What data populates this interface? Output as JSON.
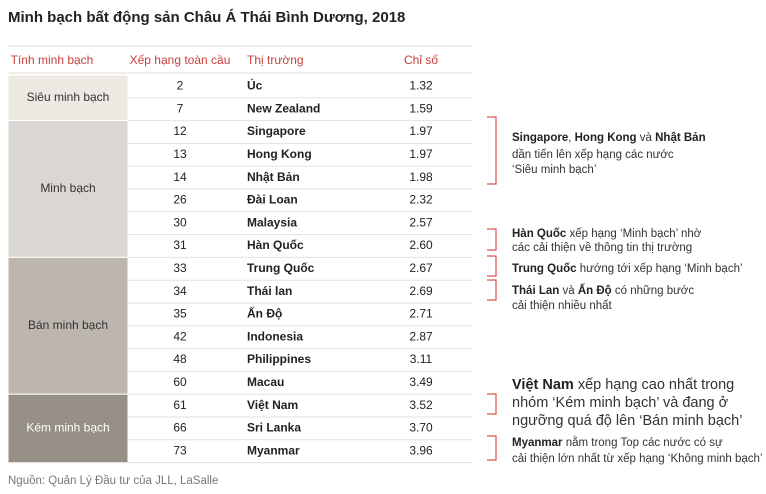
{
  "title": "Minh bạch bất động sản Châu Á Thái Bình Dương, 2018",
  "table": {
    "headers": [
      "Tính minh bạch",
      "Xếp hạng toàn cầu",
      "Thị trường",
      "Chỉ số"
    ],
    "groups": [
      {
        "label": "Siêu minh bạch",
        "rows": [
          [
            2,
            "Úc",
            "1.32"
          ],
          [
            7,
            "New Zealand",
            "1.59"
          ]
        ]
      },
      {
        "label": "Minh bạch",
        "rows": [
          [
            12,
            "Singapore",
            "1.97"
          ],
          [
            13,
            "Hong Kong",
            "1.97"
          ],
          [
            14,
            "Nhật Bản",
            "1.98"
          ],
          [
            26,
            "Đài Loan",
            "2.32"
          ],
          [
            30,
            "Malaysia",
            "2.57"
          ],
          [
            31,
            "Hàn Quốc",
            "2.60"
          ]
        ]
      },
      {
        "label": "Bán minh bạch",
        "rows": [
          [
            33,
            "Trung Quốc",
            "2.67"
          ],
          [
            34,
            "Thái lan",
            "2.69"
          ],
          [
            35,
            "Ấn Độ",
            "2.71"
          ],
          [
            42,
            "Indonesia",
            "2.87"
          ],
          [
            48,
            "Philippines",
            "3.11"
          ],
          [
            60,
            "Macau",
            "3.49"
          ]
        ]
      },
      {
        "label": "Kém minh bạch",
        "rows": [
          [
            61,
            "Việt Nam",
            "3.52"
          ],
          [
            66,
            "Sri Lanka",
            "3.70"
          ],
          [
            73,
            "Myanmar",
            "3.96"
          ]
        ]
      }
    ]
  },
  "annotations": [
    {
      "lines": [
        [
          {
            "text": "Singapore",
            "bold": true
          },
          {
            "text": ", "
          },
          {
            "text": "Hong Kong",
            "bold": true
          },
          {
            "text": " và "
          },
          {
            "text": "Nhật Bản",
            "bold": true
          }
        ],
        [
          {
            "text": "dần tiến lên xếp hạng các nước"
          }
        ],
        [
          {
            "text": "‘Siêu minh bạch’"
          }
        ]
      ]
    },
    {
      "lines": [
        [
          {
            "text": "Hàn Quốc",
            "bold": true
          },
          {
            "text": " xếp hạng ‘Minh bạch’ nhờ"
          }
        ],
        [
          {
            "text": "các cải thiện về thông tin thị trường"
          }
        ]
      ]
    },
    {
      "lines": [
        [
          {
            "text": "Trung Quốc",
            "bold": true
          },
          {
            "text": " hướng tới xếp hạng ‘Minh bạch’"
          }
        ]
      ]
    },
    {
      "lines": [
        [
          {
            "text": "Thái Lan",
            "bold": true
          },
          {
            "text": "  và  "
          },
          {
            "text": "Ấn Độ",
            "bold": true
          },
          {
            "text": " có những bước"
          }
        ],
        [
          {
            "text": "cải thiện nhiều nhất"
          }
        ]
      ]
    },
    {
      "lines": [
        [
          {
            "text": "Việt Nam",
            "bold": true
          },
          {
            "text": " xếp hạng cao nhất trong"
          }
        ],
        [
          {
            "text": "nhóm ‘Kém minh bạch’ và đang ở"
          }
        ],
        [
          {
            "text": "ngưỡng quá độ lên ‘Bán minh bạch’"
          }
        ]
      ]
    },
    {
      "lines": [
        [
          {
            "text": "Myanmar",
            "bold": true
          },
          {
            "text": " nằm trong Top các nước có sự"
          }
        ],
        [
          {
            "text": "cải thiện lớn nhất từ xếp hạng ‘Không minh bạch’"
          }
        ]
      ]
    }
  ],
  "source": "Nguồn: Quản Lý Đầu tư của JLL, LaSalle"
}
